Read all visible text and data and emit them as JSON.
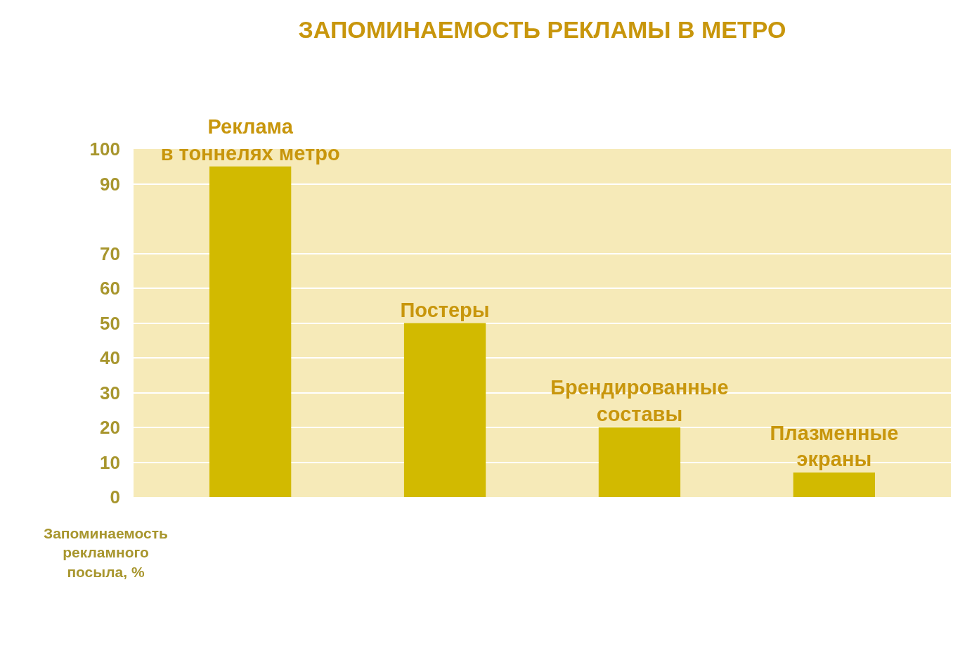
{
  "chart_data": {
    "type": "bar",
    "title": "ЗАПОМИНАЕМОСТЬ РЕКЛАМЫ В МЕТРО",
    "ylabel": "Запоминаемость рекламного посыла, %",
    "categories": [
      "Реклама в тоннелях метро",
      "Постеры",
      "Брендированные составы",
      "Плазменные экраны"
    ],
    "values": [
      95,
      50,
      20,
      7
    ],
    "color": "#d2ba00",
    "ylim": [
      0,
      100
    ],
    "yticks": [
      0,
      10,
      20,
      30,
      40,
      50,
      60,
      70,
      90,
      100
    ],
    "grid": "y",
    "tick_labels": "y"
  }
}
